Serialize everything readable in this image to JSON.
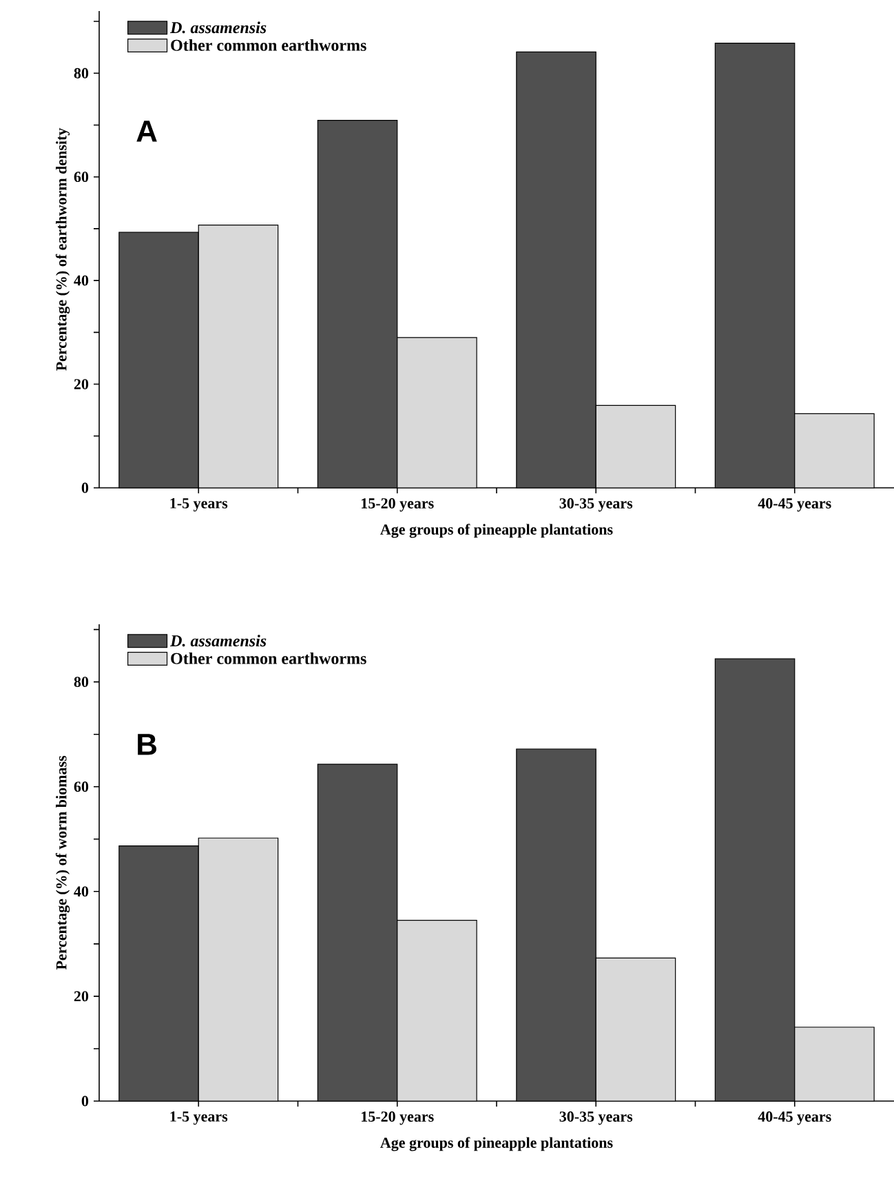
{
  "chart_data": [
    {
      "type": "bar",
      "categories": [
        "1-5 years",
        "15-20 years",
        "30-35 years",
        "40-45 years"
      ],
      "xlabel": "Age groups of pineapple plantations",
      "ylabel": "Percentage (%) of earthworm density",
      "ylim": [
        0,
        92
      ],
      "yticks": [
        0,
        {
          "value": 10,
          "label": null
        },
        20,
        {
          "value": 30,
          "label": null
        },
        40,
        {
          "value": 50,
          "label": null
        },
        60,
        {
          "value": 70,
          "label": null
        },
        80,
        {
          "value": 90,
          "label": null
        }
      ],
      "series": [
        {
          "name": "D. assamensis",
          "color": "#505050",
          "values": [
            49.3,
            70.9,
            84.1,
            85.8
          ]
        },
        {
          "name": "Other common earthworms",
          "color": "#d9d9d9",
          "values": [
            50.7,
            29.0,
            15.9,
            14.3
          ]
        }
      ],
      "annotations": [
        "A"
      ],
      "legend": "top left",
      "grid": false
    },
    {
      "type": "bar",
      "categories": [
        "1-5 years",
        "15-20 years",
        "30-35 years",
        "40-45 years"
      ],
      "xlabel": "Age groups of pineapple plantations",
      "ylabel": "Percentage (%) of worm biomass",
      "ylim": [
        0,
        91
      ],
      "yticks": [
        0,
        {
          "value": 10,
          "label": null
        },
        20,
        {
          "value": 30,
          "label": null
        },
        40,
        {
          "value": 50,
          "label": null
        },
        60,
        {
          "value": 70,
          "label": null
        },
        80,
        {
          "value": 90,
          "label": null
        }
      ],
      "series": [
        {
          "name": "D. assamensis",
          "color": "#505050",
          "values": [
            48.7,
            64.3,
            67.2,
            84.4
          ]
        },
        {
          "name": "Other common earthworms",
          "color": "#d9d9d9",
          "values": [
            50.2,
            34.5,
            27.3,
            14.1
          ]
        }
      ],
      "annotations": [
        "B"
      ],
      "legend": "top left",
      "grid": false
    }
  ]
}
